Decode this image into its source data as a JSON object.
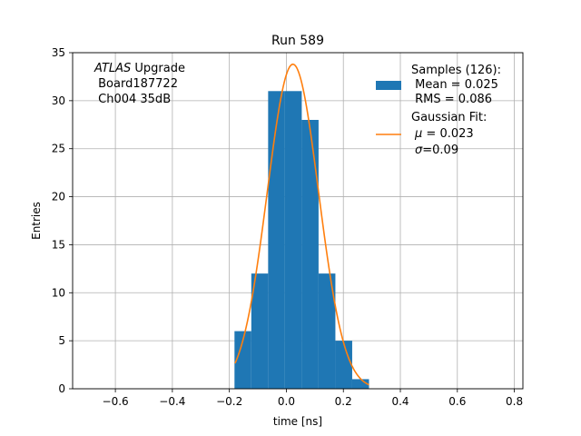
{
  "chart_data": {
    "type": "bar",
    "title": "Run 589",
    "xlabel": "time [ns]",
    "ylabel": "Entries",
    "xlim": [
      -0.75,
      0.83
    ],
    "ylim": [
      0,
      35
    ],
    "grid": true,
    "legend_position": "top-right",
    "x_ticks": [
      -0.6,
      -0.4,
      -0.2,
      0.0,
      0.2,
      0.4,
      0.6,
      0.8
    ],
    "x_tick_labels": [
      "−0.6",
      "−0.4",
      "−0.2",
      "0.0",
      "0.2",
      "0.4",
      "0.6",
      "0.8"
    ],
    "y_ticks": [
      0,
      5,
      10,
      15,
      20,
      25,
      30,
      35
    ],
    "y_tick_labels": [
      "0",
      "5",
      "10",
      "15",
      "20",
      "25",
      "30",
      "35"
    ],
    "histogram": {
      "bin_edges": [
        -0.182,
        -0.123,
        -0.064,
        -0.005,
        0.054,
        0.113,
        0.172,
        0.231,
        0.29
      ],
      "counts": [
        6,
        12,
        31,
        31,
        28,
        12,
        5,
        1
      ],
      "color": "#1f77b4"
    },
    "fit": {
      "amplitude": 33.8,
      "mu": 0.023,
      "sigma": 0.09,
      "x_range": [
        -0.18,
        0.29
      ],
      "color": "#ff7f0e"
    },
    "annotation": {
      "italic": "ATLAS",
      "line1_rest": " Upgrade",
      "line2": " Board187722",
      "line3": " Ch004 35dB"
    },
    "legend": {
      "hist_lines": [
        "Samples (126):",
        " Mean = 0.025",
        " RMS = 0.086"
      ],
      "fit_line1": "Gaussian Fit:",
      "fit_mu_sym": "μ",
      "fit_mu_rest": " = 0.023",
      "fit_sigma_sym": "σ",
      "fit_sigma_rest": "=0.09"
    }
  }
}
